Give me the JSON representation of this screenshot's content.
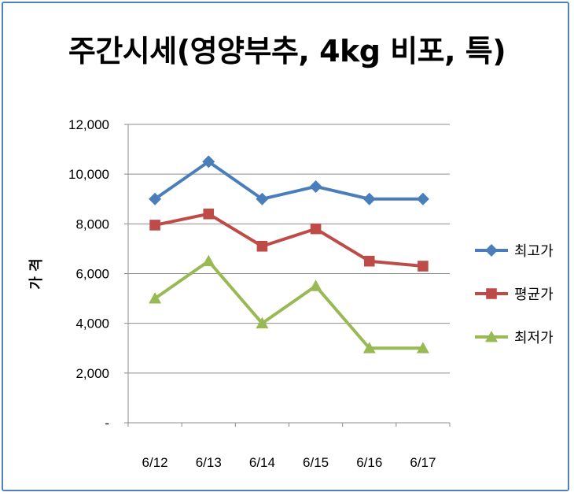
{
  "chart_data": {
    "type": "line",
    "title": "주간시세(영양부추, 4kg 비포, 특)",
    "ylabel": "가 격",
    "xlabel": "",
    "categories": [
      "6/12",
      "6/13",
      "6/14",
      "6/15",
      "6/16",
      "6/17"
    ],
    "y_ticks": [
      "-",
      "2,000",
      "4,000",
      "6,000",
      "8,000",
      "10,000",
      "12,000"
    ],
    "ylim": [
      0,
      12000
    ],
    "grid": true,
    "legend_position": "right",
    "series": [
      {
        "name": "최고가",
        "values": [
          9000,
          10500,
          9000,
          9500,
          9000,
          9000
        ],
        "color": "#4a7ebb",
        "marker": "diamond"
      },
      {
        "name": "평균가",
        "values": [
          7950,
          8400,
          7100,
          7800,
          6500,
          6300
        ],
        "color": "#be4b48",
        "marker": "square"
      },
      {
        "name": "최저가",
        "values": [
          5000,
          6500,
          4000,
          5500,
          3000,
          3000
        ],
        "color": "#98b954",
        "marker": "triangle"
      }
    ]
  }
}
